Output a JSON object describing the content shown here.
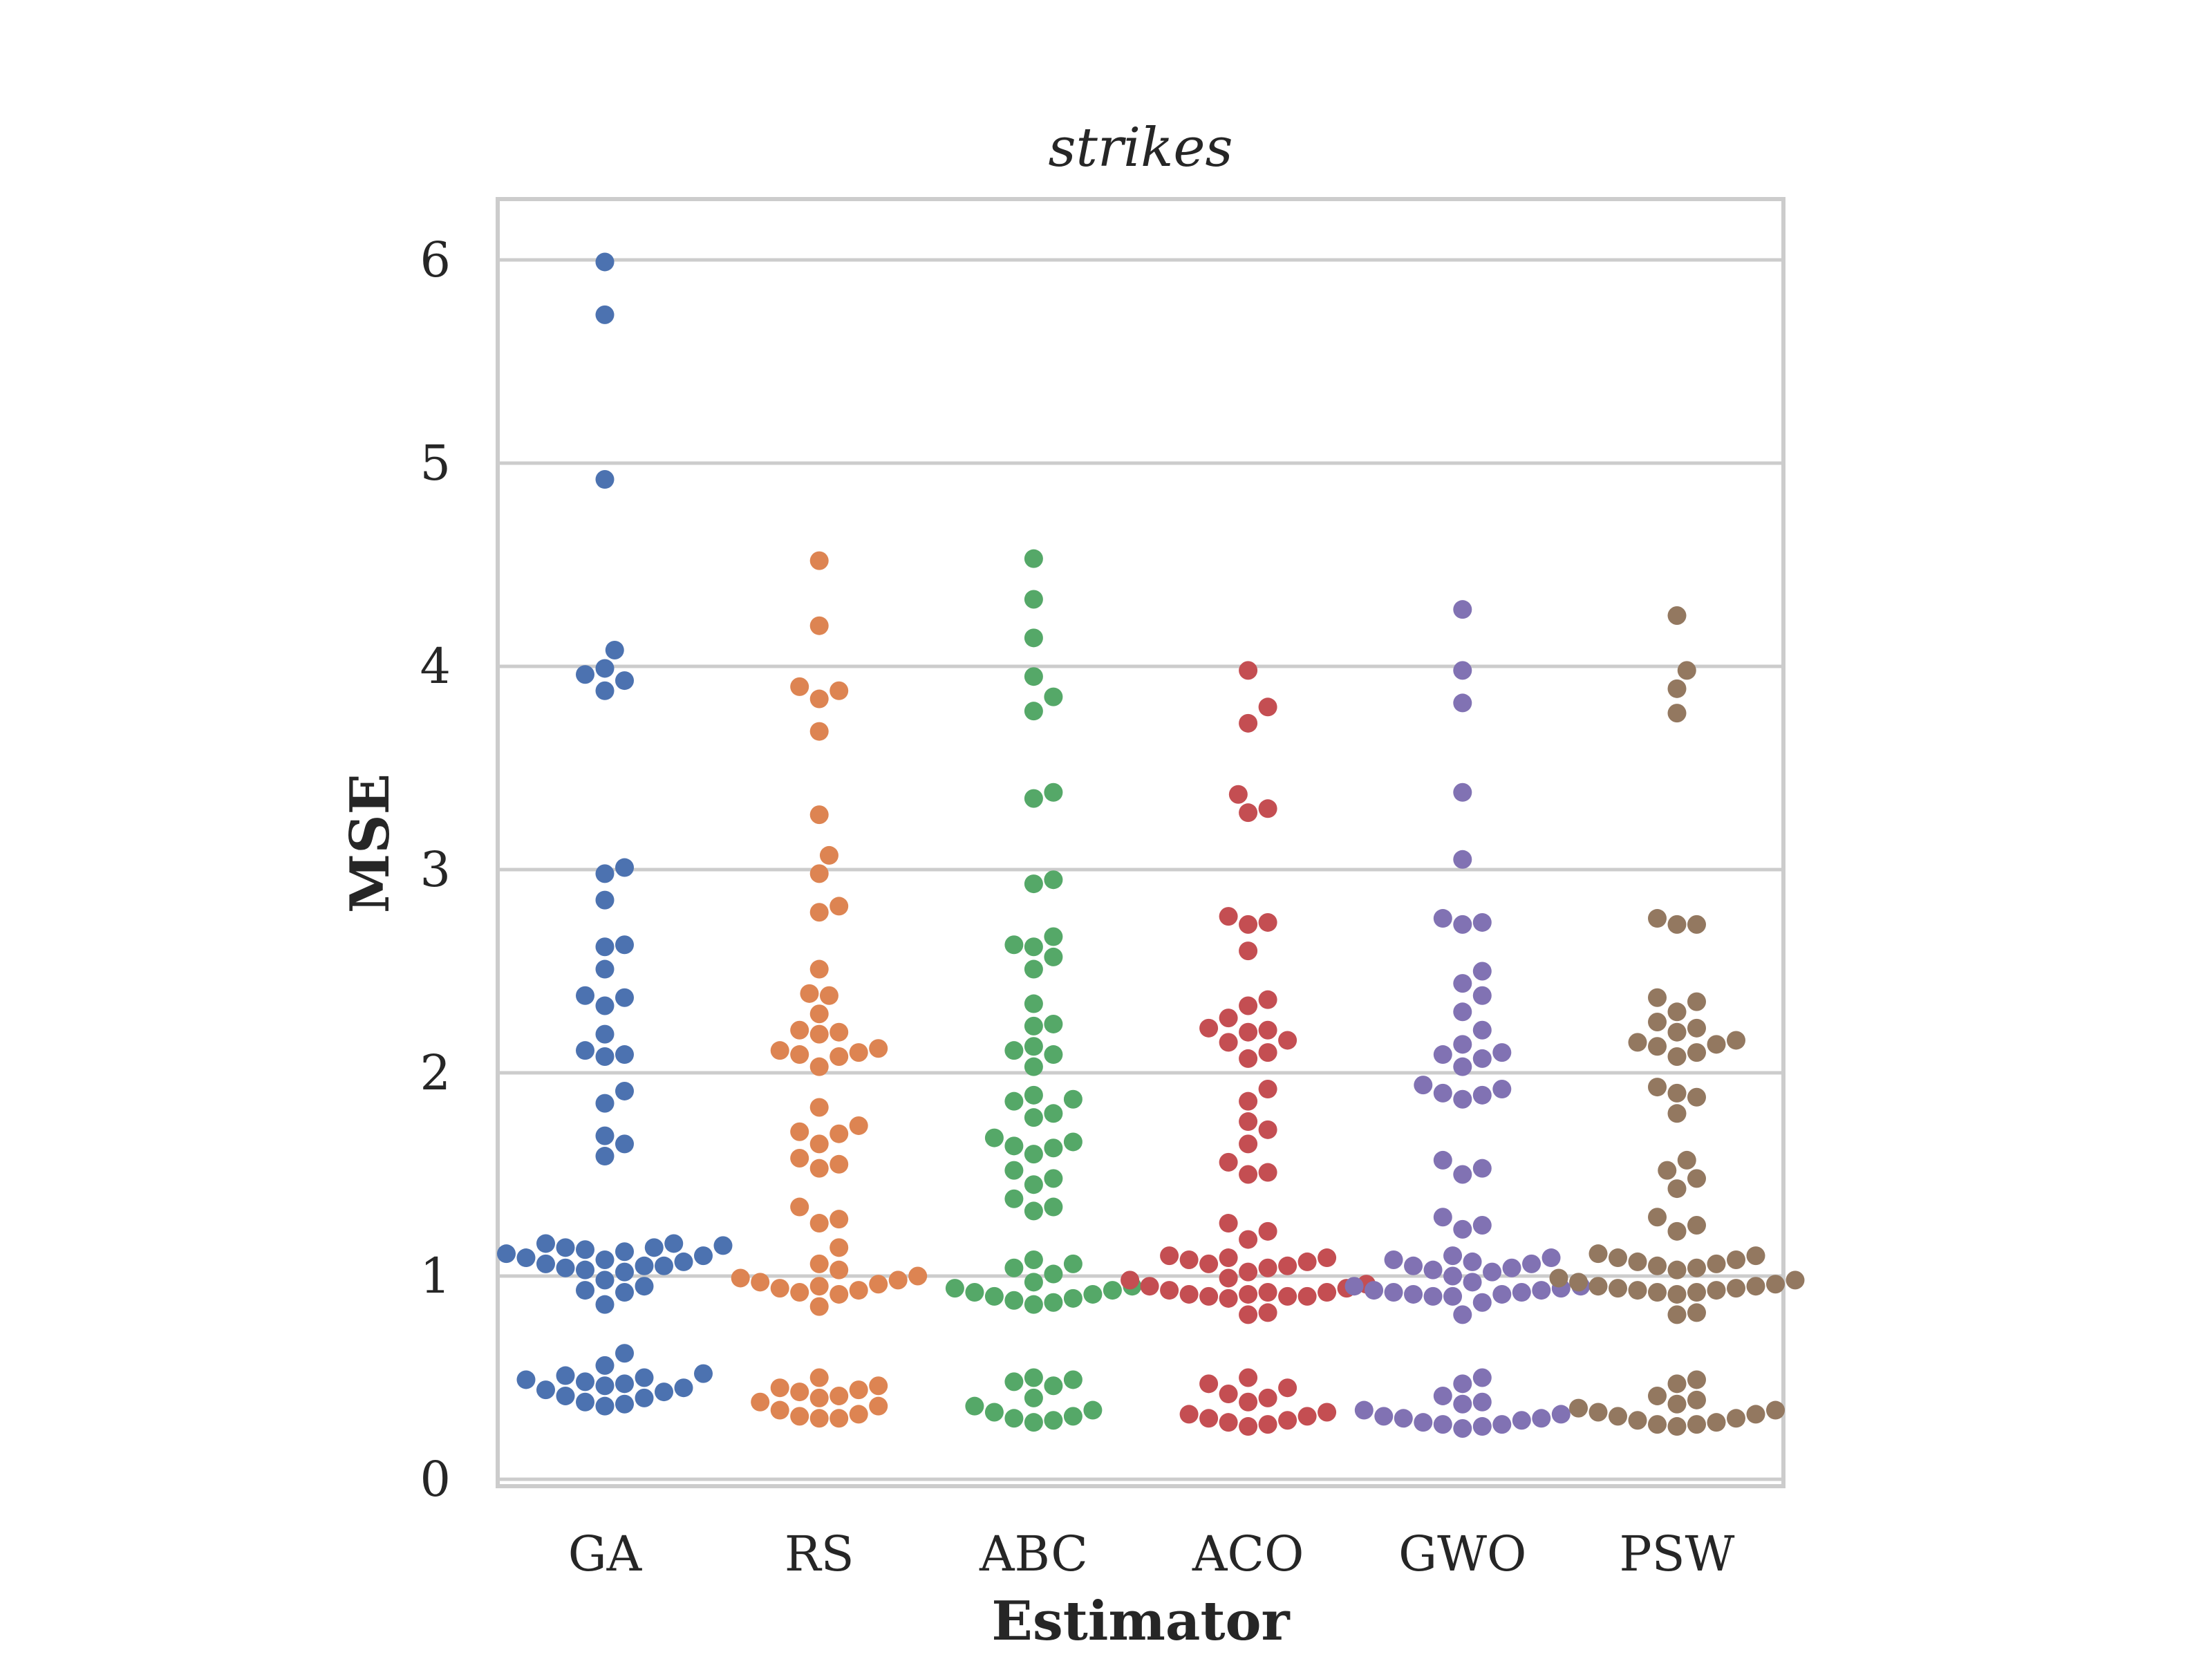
{
  "chart_data": {
    "type": "scatter",
    "subtype": "swarm",
    "title": "strikes",
    "xlabel": "Estimator",
    "ylabel": "MSE",
    "ylim": [
      -0.05,
      6.3
    ],
    "yticks": [
      0,
      1,
      2,
      3,
      4,
      5,
      6
    ],
    "grid": true,
    "categories": [
      "GA",
      "RS",
      "ABC",
      "ACO",
      "GWO",
      "PSW"
    ],
    "colors": [
      "#4c72b0",
      "#dd8452",
      "#55a868",
      "#c44e52",
      "#8172b3",
      "#937860"
    ],
    "series": [
      {
        "category": "GA",
        "values": [
          5.99,
          5.73,
          4.92,
          4.08,
          3.99,
          3.96,
          3.93,
          3.88,
          3.01,
          2.98,
          2.85,
          2.63,
          2.62,
          2.51,
          2.38,
          2.37,
          2.33,
          2.19,
          2.11,
          2.09,
          2.08,
          1.91,
          1.85,
          1.69,
          1.65,
          1.59,
          1.16,
          1.16,
          1.15,
          1.14,
          1.14,
          1.13,
          1.12,
          1.11,
          1.1,
          1.09,
          1.08,
          1.07,
          1.06,
          1.05,
          1.05,
          1.04,
          1.03,
          1.02,
          0.98,
          0.95,
          0.93,
          0.92,
          0.86,
          0.62,
          0.56,
          0.52,
          0.51,
          0.5,
          0.49,
          0.48,
          0.47,
          0.46,
          0.45,
          0.44,
          0.43,
          0.41,
          0.4,
          0.38,
          0.37,
          0.36
        ]
      },
      {
        "category": "RS",
        "values": [
          4.52,
          4.2,
          3.9,
          3.88,
          3.84,
          3.68,
          3.27,
          3.07,
          2.98,
          2.82,
          2.79,
          2.51,
          2.39,
          2.38,
          2.29,
          2.21,
          2.2,
          2.19,
          2.12,
          2.11,
          2.1,
          2.09,
          2.08,
          2.03,
          1.83,
          1.74,
          1.71,
          1.7,
          1.65,
          1.58,
          1.55,
          1.53,
          1.34,
          1.28,
          1.26,
          1.14,
          1.06,
          1.03,
          1.0,
          0.99,
          0.98,
          0.97,
          0.96,
          0.95,
          0.94,
          0.93,
          0.92,
          0.91,
          0.85,
          0.5,
          0.46,
          0.45,
          0.44,
          0.43,
          0.41,
          0.4,
          0.38,
          0.36,
          0.34,
          0.32,
          0.31,
          0.3,
          0.3
        ]
      },
      {
        "category": "ABC",
        "values": [
          4.53,
          4.33,
          4.14,
          3.95,
          3.85,
          3.78,
          3.38,
          3.35,
          2.95,
          2.93,
          2.67,
          2.63,
          2.62,
          2.57,
          2.51,
          2.34,
          2.24,
          2.23,
          2.13,
          2.11,
          2.09,
          2.03,
          1.89,
          1.87,
          1.86,
          1.8,
          1.78,
          1.68,
          1.66,
          1.64,
          1.63,
          1.6,
          1.52,
          1.48,
          1.45,
          1.38,
          1.34,
          1.32,
          1.08,
          1.06,
          1.04,
          1.01,
          0.97,
          0.95,
          0.94,
          0.93,
          0.92,
          0.91,
          0.9,
          0.89,
          0.88,
          0.87,
          0.86,
          0.5,
          0.49,
          0.48,
          0.46,
          0.4,
          0.36,
          0.34,
          0.33,
          0.31,
          0.3,
          0.29,
          0.28
        ]
      },
      {
        "category": "ACO",
        "values": [
          3.98,
          3.8,
          3.72,
          3.37,
          3.3,
          3.28,
          2.77,
          2.74,
          2.73,
          2.6,
          2.36,
          2.33,
          2.27,
          2.22,
          2.21,
          2.2,
          2.16,
          2.15,
          2.1,
          2.07,
          1.92,
          1.86,
          1.76,
          1.72,
          1.65,
          1.56,
          1.51,
          1.5,
          1.26,
          1.22,
          1.18,
          1.1,
          1.09,
          1.09,
          1.08,
          1.07,
          1.06,
          1.05,
          1.04,
          1.02,
          0.99,
          0.98,
          0.96,
          0.95,
          0.94,
          0.93,
          0.92,
          0.92,
          0.91,
          0.91,
          0.9,
          0.9,
          0.9,
          0.89,
          0.82,
          0.81,
          0.5,
          0.47,
          0.45,
          0.42,
          0.4,
          0.38,
          0.33,
          0.32,
          0.31,
          0.3,
          0.29,
          0.28,
          0.27,
          0.26
        ]
      },
      {
        "category": "GWO",
        "values": [
          4.28,
          3.98,
          3.82,
          3.38,
          3.05,
          2.76,
          2.74,
          2.73,
          2.5,
          2.44,
          2.38,
          2.3,
          2.21,
          2.14,
          2.1,
          2.09,
          2.07,
          2.03,
          1.94,
          1.92,
          1.9,
          1.89,
          1.87,
          1.57,
          1.53,
          1.5,
          1.29,
          1.25,
          1.23,
          1.1,
          1.09,
          1.08,
          1.07,
          1.06,
          1.05,
          1.04,
          1.03,
          1.02,
          1.0,
          0.97,
          0.95,
          0.95,
          0.94,
          0.93,
          0.93,
          0.92,
          0.92,
          0.91,
          0.91,
          0.9,
          0.9,
          0.87,
          0.81,
          0.5,
          0.47,
          0.41,
          0.38,
          0.37,
          0.34,
          0.32,
          0.31,
          0.3,
          0.3,
          0.29,
          0.28,
          0.27,
          0.27,
          0.26,
          0.25
        ]
      },
      {
        "category": "PSW",
        "values": [
          4.25,
          3.98,
          3.89,
          3.77,
          2.76,
          2.73,
          2.73,
          2.37,
          2.35,
          2.3,
          2.25,
          2.22,
          2.2,
          2.16,
          2.15,
          2.14,
          2.13,
          2.1,
          2.08,
          1.93,
          1.9,
          1.88,
          1.8,
          1.57,
          1.52,
          1.48,
          1.43,
          1.29,
          1.25,
          1.22,
          1.11,
          1.1,
          1.09,
          1.08,
          1.07,
          1.06,
          1.05,
          1.04,
          1.03,
          0.99,
          0.98,
          0.97,
          0.96,
          0.95,
          0.95,
          0.94,
          0.94,
          0.93,
          0.93,
          0.92,
          0.92,
          0.91,
          0.82,
          0.81,
          0.49,
          0.47,
          0.41,
          0.39,
          0.37,
          0.35,
          0.34,
          0.33,
          0.32,
          0.31,
          0.3,
          0.29,
          0.28,
          0.27,
          0.27,
          0.26
        ]
      }
    ]
  }
}
